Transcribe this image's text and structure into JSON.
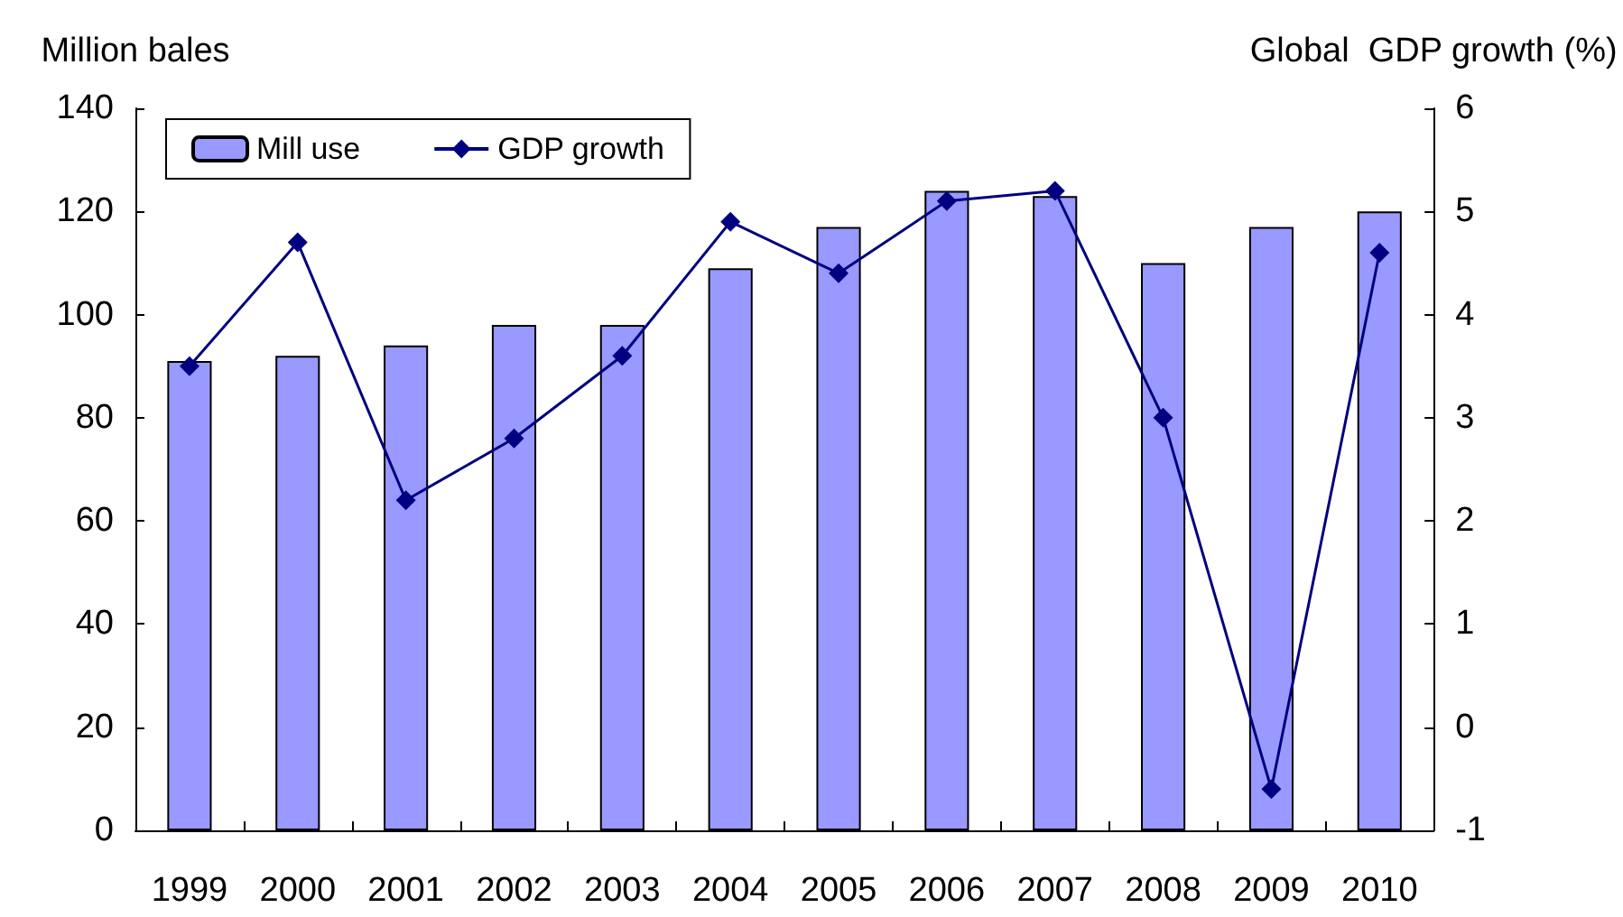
{
  "chart_data": {
    "type": "bar",
    "ylabel": "Million bales",
    "y2label": "Global  GDP growth (%)",
    "categories": [
      "1999",
      "2000",
      "2001",
      "2002",
      "2003",
      "2004",
      "2005",
      "2006",
      "2007",
      "2008",
      "2009",
      "2010"
    ],
    "series": [
      {
        "name": "Mill use",
        "color": "#9999ff",
        "values": [
          91,
          92,
          94,
          98,
          98,
          109,
          117,
          124,
          123,
          110,
          117,
          120
        ]
      },
      {
        "name": "GDP growth",
        "type": "line",
        "axis": "y2",
        "color": "#000080",
        "marker": "diamond",
        "values": [
          3.5,
          4.7,
          2.2,
          2.8,
          3.6,
          4.9,
          4.4,
          5.1,
          5.2,
          3.0,
          -0.6,
          4.6
        ]
      }
    ],
    "ylim": [
      0,
      140
    ],
    "yticks": [
      0,
      20,
      40,
      60,
      80,
      100,
      120,
      140
    ],
    "y2lim": [
      -1,
      6
    ],
    "y2ticks": [
      -1,
      0,
      1,
      2,
      3,
      4,
      5,
      6
    ],
    "grid": false,
    "legend": "top left"
  }
}
